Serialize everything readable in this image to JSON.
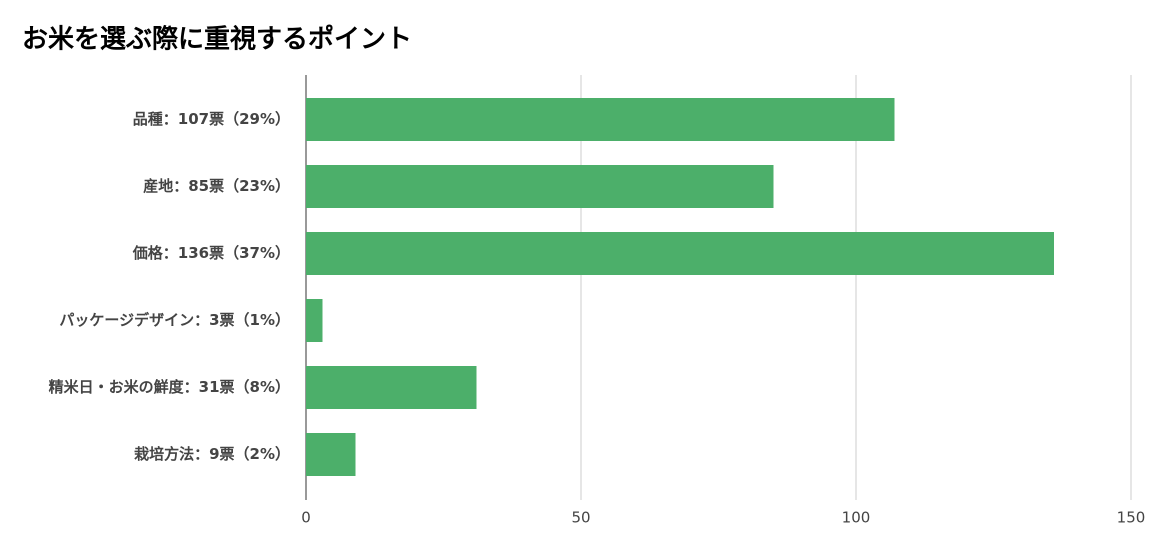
{
  "chart_data": {
    "type": "bar",
    "orientation": "horizontal",
    "title": "お米を選ぶ際に重視するポイント",
    "categories": [
      "品種：107票（29%）",
      "産地：85票（23%）",
      "価格：136票（37%）",
      "パッケージデザイン：3票（1%）",
      "精米日・お米の鮮度：31票（8%）",
      "栽培方法：9票（2%）"
    ],
    "values": [
      107,
      85,
      136,
      3,
      31,
      9
    ],
    "color": "#4caf6a",
    "xlim": [
      0,
      150
    ],
    "xticks": [
      0,
      50,
      100,
      150
    ],
    "grid": true
  }
}
